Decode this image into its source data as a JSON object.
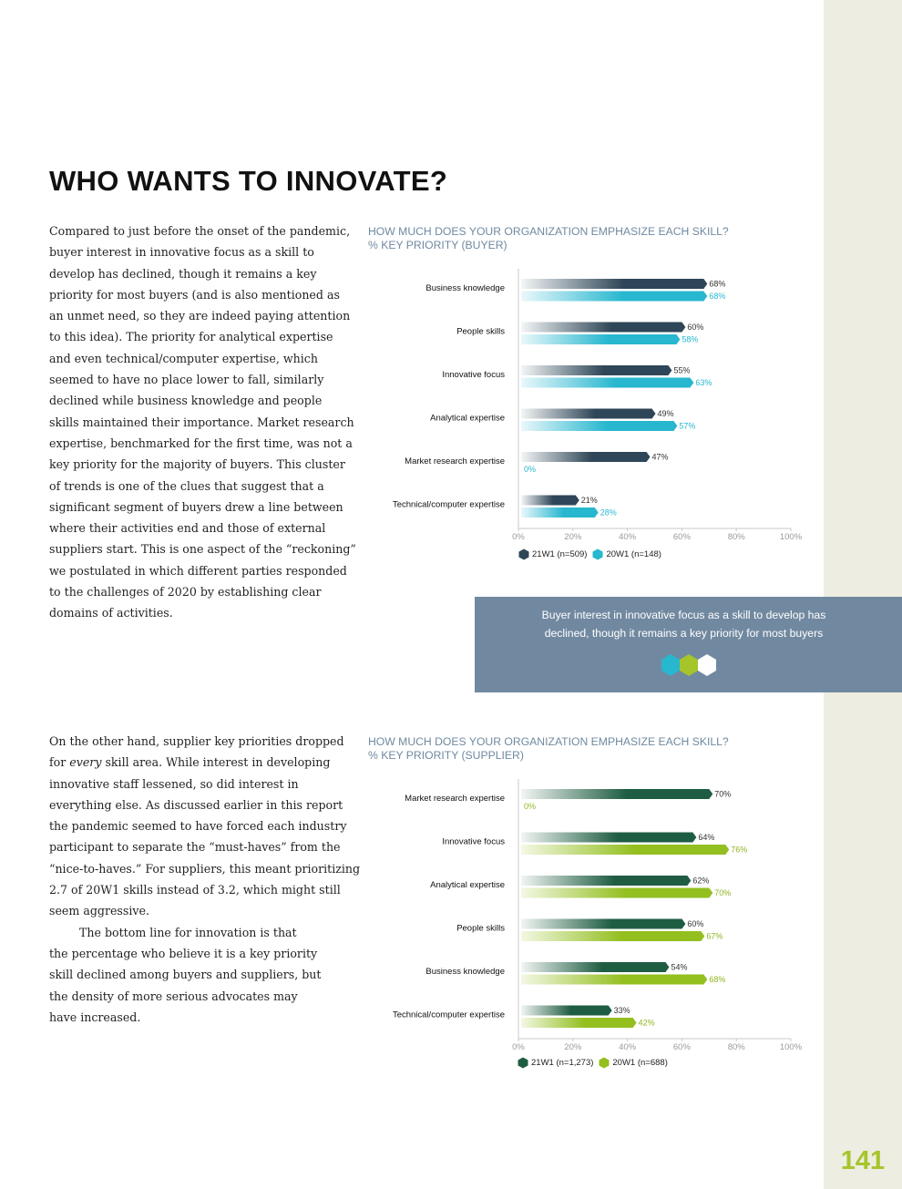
{
  "page": {
    "title": "WHO WANTS TO INNOVATE?",
    "page_number": "141"
  },
  "text1": {
    "lines": [
      "Compared to just before the onset of the pandemic,",
      "buyer interest in innovative focus as a skill to",
      "develop has declined, though it remains a key",
      "priority for most buyers (and is also mentioned as",
      "an unmet need, so they are indeed paying attention",
      "to this idea). The priority for analytical expertise",
      "and even technical/computer expertise, which",
      "seemed to have no place lower to fall, similarly",
      "declined while business knowledge and people",
      "skills maintained their importance. Market research",
      "expertise, benchmarked for the first time, was not a",
      "key priority for the majority of buyers. This cluster",
      "of trends is one of the clues that suggest that a",
      "significant segment of buyers drew a line between",
      "where their activities end and those of external",
      "suppliers start. This is one aspect of the “reckoning”",
      "we postulated in which different parties responded",
      "to the challenges of 2020 by establishing clear",
      "domains of activities."
    ]
  },
  "text2": {
    "line1": "On the other hand, supplier key priorities dropped",
    "line2_pre": "for ",
    "line2_em": "every",
    "line2_post": " skill area. While interest in developing",
    "lines": [
      "innovative staff lessened, so did interest in",
      "everything else. As discussed earlier in this report",
      "the pandemic seemed to have forced each industry",
      "participant to separate the “must-haves” from the",
      "“nice-to-haves.” For suppliers, this meant prioritizing",
      "2.7 of 20W1 skills instead of 3.2, which might still",
      "seem aggressive."
    ],
    "para2": [
      "The bottom line for innovation is that",
      "the percentage who believe it is a key priority",
      "skill declined among buyers and suppliers, but",
      "the density of more serious advocates may",
      "have increased."
    ]
  },
  "callout": {
    "line1": "Buyer interest in innovative focus as a skill to develop has",
    "line2": "declined, though it remains a key priority for most buyers"
  },
  "colors": {
    "buyer_21w1": "#2e4657",
    "buyer_20w1": "#27b7cf",
    "supplier_21w1": "#1f5d43",
    "supplier_20w1": "#93bf1f",
    "accent_green": "#a5c52a",
    "callout_bg": "#7189a0"
  },
  "chart_data": [
    {
      "type": "bar",
      "title_line1": "HOW MUCH DOES YOUR ORGANIZATION EMPHASIZE EACH SKILL?",
      "title_line2": "% KEY PRIORITY (BUYER)",
      "categories": [
        "Business knowledge",
        "People skills",
        "Innovative focus",
        "Analytical expertise",
        "Market research expertise",
        "Technical/computer expertise"
      ],
      "series": [
        {
          "name": "21W1 (n=509)",
          "values": [
            68,
            60,
            55,
            49,
            47,
            21
          ],
          "labels": [
            "68%",
            "60%",
            "55%",
            "49%",
            "47%",
            "21%"
          ]
        },
        {
          "name": "20W1 (n=148)",
          "values": [
            68,
            58,
            63,
            57,
            0,
            28
          ],
          "labels": [
            "68%",
            "58%",
            "63%",
            "57%",
            "0%",
            "28%"
          ]
        }
      ],
      "xlim": [
        0,
        100
      ],
      "ticks": [
        "0%",
        "20%",
        "40%",
        "60%",
        "80%",
        "100%"
      ],
      "legend": [
        "21W1 (n=509)",
        "20W1 (n=148)"
      ]
    },
    {
      "type": "bar",
      "title_line1": "HOW MUCH DOES YOUR ORGANIZATION EMPHASIZE EACH SKILL?",
      "title_line2": "% KEY PRIORITY (SUPPLIER)",
      "categories": [
        "Market research expertise",
        "Innovative focus",
        "Analytical expertise",
        "People skills",
        "Business knowledge",
        "Technical/computer expertise"
      ],
      "series": [
        {
          "name": "21W1 (n=1,273)",
          "values": [
            70,
            64,
            62,
            60,
            54,
            33
          ],
          "labels": [
            "70%",
            "64%",
            "62%",
            "60%",
            "54%",
            "33%"
          ]
        },
        {
          "name": "20W1 (n=688)",
          "values": [
            0,
            76,
            70,
            67,
            68,
            42
          ],
          "labels": [
            "0%",
            "76%",
            "70%",
            "67%",
            "68%",
            "42%"
          ]
        }
      ],
      "xlim": [
        0,
        100
      ],
      "ticks": [
        "0%",
        "20%",
        "40%",
        "60%",
        "80%",
        "100%"
      ],
      "legend": [
        "21W1 (n=1,273)",
        "20W1 (n=688)"
      ]
    }
  ]
}
